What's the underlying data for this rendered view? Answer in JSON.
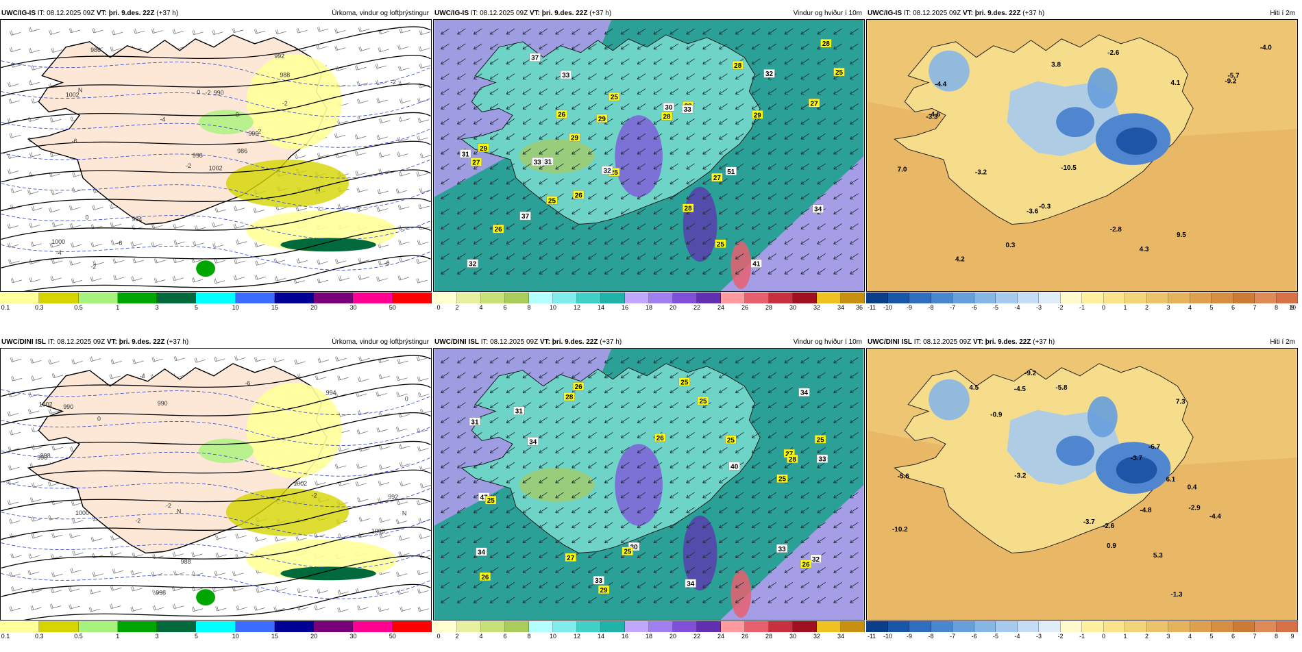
{
  "rows": [
    {
      "model": "UWC/IG-IS",
      "it_label": "IT:",
      "it": "08.12.2025 09Z",
      "vt_label": "VT:",
      "vt": "þri. 9.des. 22Z",
      "lead": "(+37 h)"
    },
    {
      "model": "UWC/DINI ISL",
      "it_label": "IT:",
      "it": "08.12.2025 09Z",
      "vt_label": "VT:",
      "vt": "þri. 9.des. 22Z",
      "lead": "(+37 h)"
    }
  ],
  "titles": {
    "precip": "Úrkoma, vindur og loftþrýstingur",
    "wind": "Vindur og hviður í 10m",
    "temp": "Hiti í 2m"
  },
  "colorbars": {
    "precip": {
      "colors": [
        "#ffff99",
        "#d4d400",
        "#a6f27a",
        "#00a600",
        "#006a3c",
        "#00ffff",
        "#3c6cff",
        "#000096",
        "#7a007a",
        "#ff0090",
        "#ff0000"
      ],
      "ticks": [
        "0.1",
        "0.3",
        "0.5",
        "1",
        "3",
        "5",
        "10",
        "15",
        "20",
        "30",
        "50"
      ]
    },
    "wind_top": {
      "colors": [
        "#ffffd0",
        "#e6f0a0",
        "#c8e078",
        "#aacc5a",
        "#b4ffff",
        "#80ecec",
        "#40d0c8",
        "#20b4a8",
        "#c0a8ff",
        "#a080f0",
        "#8050d8",
        "#6030b0",
        "#ff9aa0",
        "#e86070",
        "#c83040",
        "#a01020",
        "#f0c020",
        "#c89010"
      ],
      "ticks": [
        "0",
        "2",
        "4",
        "6",
        "8",
        "10",
        "12",
        "14",
        "16",
        "18",
        "20",
        "22",
        "24",
        "26",
        "28",
        "30",
        "32",
        "34",
        "36"
      ]
    },
    "wind_bottom": {
      "colors": [
        "#ffffd0",
        "#e6f0a0",
        "#c8e078",
        "#aacc5a",
        "#b4ffff",
        "#80ecec",
        "#40d0c8",
        "#20b4a8",
        "#c0a8ff",
        "#a080f0",
        "#8050d8",
        "#6030b0",
        "#ff9aa0",
        "#e86070",
        "#c83040",
        "#a01020",
        "#f0c020",
        "#c89010"
      ],
      "ticks": [
        "0",
        "2",
        "4",
        "6",
        "8",
        "10",
        "12",
        "14",
        "16",
        "18",
        "20",
        "22",
        "24",
        "26",
        "28",
        "30",
        "32",
        "34"
      ]
    },
    "temp_top": {
      "colors": [
        "#0b3e8a",
        "#1a56a8",
        "#2f6dbf",
        "#4a86d0",
        "#679fdd",
        "#86b6e6",
        "#a6cbee",
        "#c4ddf4",
        "#e0ecf6",
        "#fffacc",
        "#fff0a0",
        "#fae38a",
        "#f3d479",
        "#ecc36a",
        "#e6b25c",
        "#dea04e",
        "#d68e42",
        "#cc7a36",
        "#e08a58",
        "#d87048"
      ],
      "ticks": [
        "-11",
        "-10",
        "-9",
        "-8",
        "-7",
        "-6",
        "-5",
        "-4",
        "-3",
        "-2",
        "-1",
        "0",
        "1",
        "2",
        "3",
        "4",
        "5",
        "6",
        "7",
        "8",
        "9",
        "10"
      ]
    },
    "temp_bottom": {
      "colors": [
        "#0b3e8a",
        "#1a56a8",
        "#2f6dbf",
        "#4a86d0",
        "#679fdd",
        "#86b6e6",
        "#a6cbee",
        "#c4ddf4",
        "#e0ecf6",
        "#fffacc",
        "#fff0a0",
        "#fae38a",
        "#f3d479",
        "#ecc36a",
        "#e6b25c",
        "#dea04e",
        "#d68e42",
        "#cc7a36",
        "#e08a58",
        "#d87048"
      ],
      "ticks": [
        "-11",
        "-10",
        "-9",
        "-8",
        "-7",
        "-6",
        "-5",
        "-4",
        "-3",
        "-2",
        "-1",
        "0",
        "1",
        "2",
        "3",
        "4",
        "5",
        "6",
        "7",
        "8",
        "9"
      ]
    }
  },
  "labels": {
    "precip_top": [
      "1002",
      "1002",
      "998",
      "1000",
      "996",
      "994",
      "992",
      "990",
      "988",
      "986",
      "986",
      "-6",
      "-6",
      "-2",
      "-2",
      "-2",
      "-2",
      "0",
      "0",
      "0",
      "-4",
      "-4",
      "-6",
      "-2",
      "-2",
      "N",
      "N"
    ],
    "precip_bottom": [
      "1002",
      "1000",
      "998",
      "1002",
      "1000",
      "998",
      "996",
      "994",
      "992",
      "990",
      "990",
      "988",
      "0",
      "0",
      "-2",
      "-2",
      "-2",
      "-4",
      "-6",
      "N",
      "N"
    ],
    "wind_top": [
      "32",
      "29",
      "27",
      "28",
      "26",
      "30",
      "28",
      "29",
      "29",
      "26",
      "37",
      "26",
      "31",
      "31",
      "29",
      "27",
      "32",
      "37",
      "28",
      "34",
      "41",
      "25",
      "33",
      "27",
      "25",
      "32",
      "28",
      "29",
      "33",
      "33",
      "51",
      "25",
      "25",
      "25"
    ],
    "wind_bottom": [
      "33",
      "25",
      "32",
      "26",
      "26",
      "26",
      "27",
      "27",
      "34",
      "34",
      "33",
      "31",
      "25",
      "29",
      "34",
      "31",
      "26",
      "28",
      "30",
      "28",
      "47",
      "25",
      "34",
      "40",
      "33",
      "25",
      "25",
      "25",
      "25"
    ],
    "temp_top": [
      "-3.6",
      "-0.3",
      "-2.6",
      "4.2",
      "3.8",
      "0.3",
      "-4.0",
      "-5.7",
      "-2.8",
      "-3.3",
      "-4.4",
      "4.1",
      "-9.2",
      "-10.5",
      "-4.6",
      "4.3",
      "-3.2",
      "7.0",
      "9.5"
    ],
    "temp_bottom": [
      "-3.7",
      "-1.3",
      "-3.7",
      "-4.5",
      "4.5",
      "0.9",
      "-6.7",
      "0.4",
      "-4.4",
      "-5.6",
      "-2.9",
      "-4.8",
      "5.3",
      "-2.6",
      "-9.2",
      "-10.2",
      "-5.8",
      "-0.9",
      "-3.2",
      "7.3",
      "6.1"
    ]
  },
  "map_colors": {
    "precip_bg": "#ffffff",
    "land_pink": "#fde8d8",
    "wind_sea": "#2aa096",
    "wind_land": "#6fd4c8",
    "wind_violet": "#b49cf0",
    "temp_sea": "#e9b866",
    "temp_warm": "#f6dd8c",
    "temp_cold": "#4f86cf",
    "temp_coldest": "#1f55a6"
  }
}
